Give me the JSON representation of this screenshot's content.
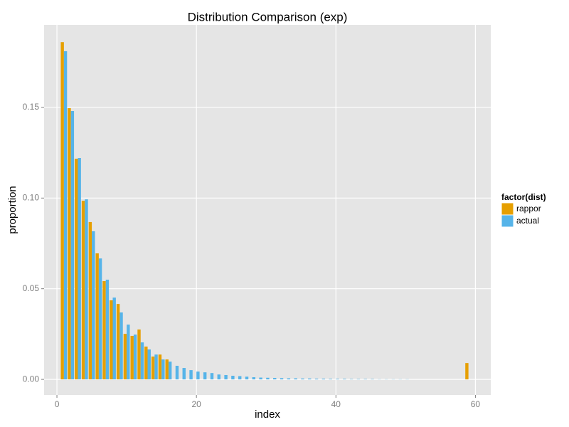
{
  "chart_data": {
    "type": "bar",
    "title": "Distribution Comparison (exp)",
    "x_label": "index",
    "y_label": "proportion",
    "legend_title": "factor(dist)",
    "x": [
      1,
      2,
      3,
      4,
      5,
      6,
      7,
      8,
      9,
      10,
      11,
      12,
      13,
      14,
      15,
      16,
      17,
      18,
      19,
      20,
      21,
      22,
      23,
      24,
      25,
      26,
      27,
      28,
      29,
      30,
      31,
      32,
      33,
      34,
      35,
      36,
      37,
      38,
      39,
      40,
      41,
      42,
      43,
      44,
      45,
      46,
      47,
      48,
      49,
      50,
      51,
      52,
      53,
      54,
      55,
      56,
      57,
      58,
      59
    ],
    "series": [
      {
        "name": "rappor",
        "color": "#e69f00",
        "values": [
          0.186,
          0.1496,
          0.1217,
          0.0985,
          0.0868,
          0.0695,
          0.0542,
          0.0436,
          0.0416,
          0.0251,
          0.024,
          0.0275,
          0.0181,
          0.0126,
          0.0137,
          0.011,
          0,
          0,
          0,
          0,
          0,
          0,
          0,
          0,
          0,
          0,
          0,
          0,
          0,
          0,
          0,
          0,
          0,
          0,
          0,
          0,
          0,
          0,
          0,
          0,
          0,
          0,
          0,
          0,
          0,
          0,
          0,
          0,
          0,
          0,
          0,
          0,
          0,
          0,
          0,
          0,
          0,
          0,
          0.009
        ]
      },
      {
        "name": "actual",
        "color": "#56b4e9",
        "values": [
          0.181,
          0.148,
          0.1221,
          0.0993,
          0.0817,
          0.0667,
          0.055,
          0.0451,
          0.0369,
          0.0302,
          0.0247,
          0.0204,
          0.0165,
          0.0137,
          0.011,
          0.0098,
          0.0075,
          0.0063,
          0.0051,
          0.0043,
          0.0039,
          0.0035,
          0.0027,
          0.0024,
          0.002,
          0.0018,
          0.0015,
          0.0012,
          0.001,
          0.0009,
          0.0008,
          0.0007,
          0.0006,
          0.0006,
          0.0005,
          0.0005,
          0.0004,
          0.0004,
          0.0003,
          0.0003,
          0.0003,
          0.0002,
          0.0002,
          0.0002,
          0.0002,
          0.0001,
          0.0001,
          0.0001,
          0.0001,
          0.0001,
          0,
          0,
          0,
          0,
          0,
          0,
          0,
          0,
          0
        ]
      }
    ],
    "xlim": [
      -1.84,
      62.2
    ],
    "ylim": [
      -0.0086,
      0.1955
    ],
    "xticks": [
      0,
      20,
      40,
      60
    ],
    "yticks": [
      {
        "value": 0,
        "label": "0.00"
      },
      0.05,
      {
        "value": 0.1,
        "label": "0.10"
      },
      0.15
    ],
    "grid": true,
    "legend": "right"
  }
}
